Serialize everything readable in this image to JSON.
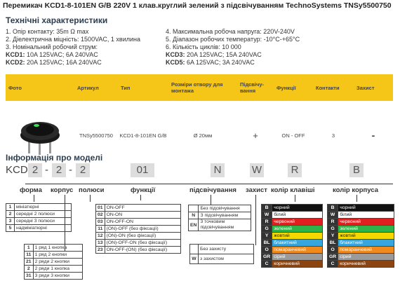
{
  "title": "Перемикач KCD1-8-101EN G/B 220V 1 клав.круглий зелений з підсвічуванням TechnoSystems TNSy5500750",
  "specs": {
    "heading": "Технічні характеристики",
    "left": [
      "1. Опір контакту: 35m Ω  max",
      "2. Діелектрична міцність: 1500VAC, 1 хвилина",
      "3. Номінальний робочий струм:"
    ],
    "left_kcd1_label": "KCD1:",
    "left_kcd1_value": "10A 125VAC; 6A 240VAC",
    "left_kcd2_label": "KCD2:",
    "left_kcd2_value": "20A 125VAC; 16A 240VAC",
    "right": [
      "4. Максимальна робоча напруга: 220V-240V",
      "5. Діапазон робочих температур: -10°C-+65°C",
      "6. Кількість циклів: 10 000"
    ],
    "right_kcd3_label": "KCD3:",
    "right_kcd3_value": "20A 125VAC; 15A 240VAC",
    "right_kcd5_label": "KCD5:",
    "right_kcd5_value": "6A 125VAC; 3A 240VAC"
  },
  "product_table": {
    "headers": [
      "Фото",
      "Артикул",
      "Тип",
      "Розміри отвору для монтажа",
      "Підсвічу-вання",
      "Функції",
      "Контакти",
      "Захист"
    ],
    "row": [
      "",
      "TNSy5500750",
      "KCD1-8-101EN G/B",
      "Ø 20мм",
      "+",
      "ON - OFF",
      "3",
      "-"
    ]
  },
  "model_info": {
    "heading": "Інформація про моделі",
    "prefix": "KCD",
    "segments": [
      "2",
      "2",
      "2",
      "01",
      "N",
      "W",
      "R",
      "B"
    ],
    "dash": "-",
    "labels": {
      "form": "форма",
      "body": "корпус",
      "poles": "полюси",
      "function": "функції",
      "light": "підсвічування",
      "protect": "захист",
      "key_color": "колір клавіші",
      "body_color": "колір корпуса"
    }
  },
  "form_table": [
    {
      "k": "1",
      "v": "мініатюрні"
    },
    {
      "k": "2",
      "v": "середні 2 полюси"
    },
    {
      "k": "3",
      "v": "середні 3 полюси"
    },
    {
      "k": "5",
      "v": "надмініатюрні"
    }
  ],
  "rows_table": [
    {
      "k": "1",
      "v": "1 ряд 1 кнопка"
    },
    {
      "k": "11",
      "v": "1 ряд 2 кнопки"
    },
    {
      "k": "21",
      "v": "2 ряди 2 кнопки"
    },
    {
      "k": "2",
      "v": "2 ряди 1 кнопка"
    },
    {
      "k": "31",
      "v": "3 ряди 3 кнопки"
    }
  ],
  "func_table": [
    {
      "k": "01",
      "v": "ON-OFF"
    },
    {
      "k": "02",
      "v": "ON-ON"
    },
    {
      "k": "03",
      "v": "ON-OFF-ON"
    },
    {
      "k": "11",
      "v": "(ON)-OFF (без фіксації)"
    },
    {
      "k": "12",
      "v": "(ON)-ON (без фіксації)"
    },
    {
      "k": "13",
      "v": "(ON)-OFF-ON (без фіксації)"
    },
    {
      "k": "23",
      "v": "ON-OFF-(ON) (без фіксації)"
    }
  ],
  "light_table": [
    {
      "k": "",
      "v": "Без підсвічування"
    },
    {
      "k": "N",
      "v": "З підсвічуванням"
    },
    {
      "k": "EN",
      "v": "3 точковим підсвічуванням"
    }
  ],
  "protect_table": [
    {
      "k": "",
      "v": "Без захисту"
    },
    {
      "k": "W",
      "v": "з захистом"
    }
  ],
  "colors": [
    {
      "k": "B",
      "v": "чорний",
      "c": "#111111"
    },
    {
      "k": "W",
      "v": "білий",
      "c": "#ffffff"
    },
    {
      "k": "R",
      "v": "червоний",
      "c": "#e02020"
    },
    {
      "k": "G",
      "v": "зелений",
      "c": "#2db34a"
    },
    {
      "k": "Y",
      "v": "жовтий",
      "c": "#f5d800"
    },
    {
      "k": "BL",
      "v": "блакитний",
      "c": "#37a6de"
    },
    {
      "k": "O",
      "v": "помаранчевий",
      "c": "#f08a1c"
    },
    {
      "k": "GR",
      "v": "сірий",
      "c": "#9a9a9a"
    },
    {
      "k": "C",
      "v": "коричневий",
      "c": "#8b4513"
    }
  ]
}
